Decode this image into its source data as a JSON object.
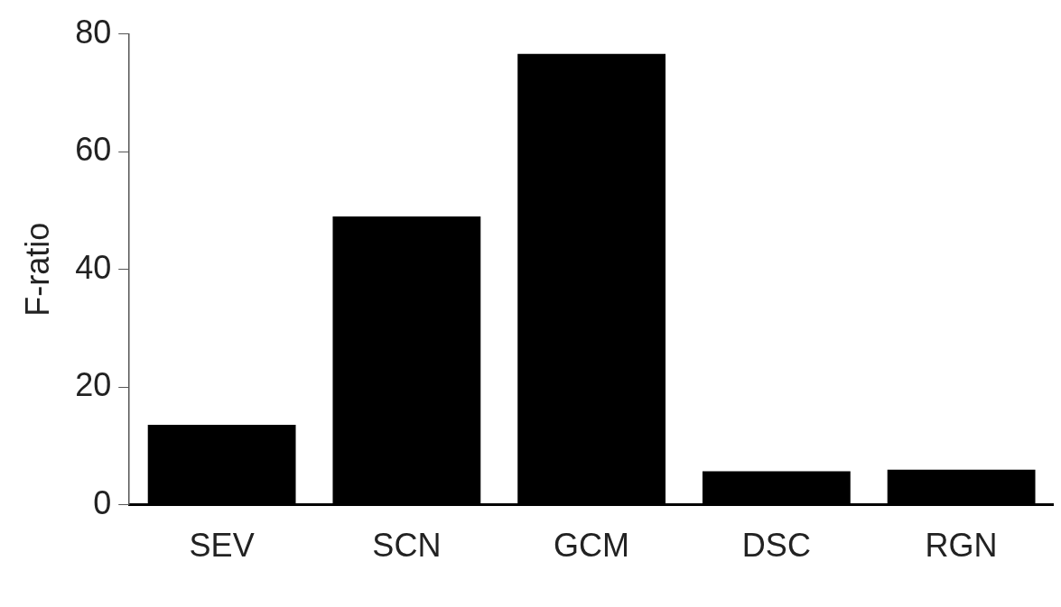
{
  "chart_data": {
    "type": "bar",
    "ylabel": "F-ratio",
    "categories": [
      "SEV",
      "SCN",
      "GCM",
      "DSC",
      "RGN"
    ],
    "values": [
      13.6,
      49,
      76.6,
      5.7,
      6.0
    ],
    "color": "#000000",
    "ylim": [
      0,
      80
    ],
    "yticks": [
      0,
      20,
      40,
      60,
      80
    ],
    "grid": false,
    "legend": false
  }
}
